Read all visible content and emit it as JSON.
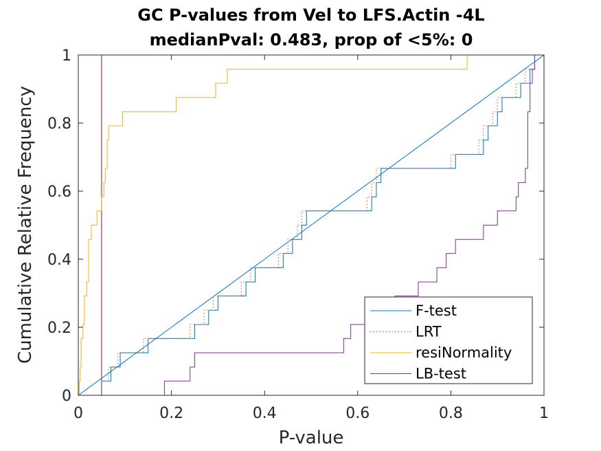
{
  "chart_data": {
    "type": "line",
    "title": [
      "GC P-values from Vel to LFS.Actin -4L",
      "medianPval: 0.483, prop of <5%: 0"
    ],
    "xlabel": "P-value",
    "ylabel": "Cumulative Relative Frequency",
    "xlim": [
      0,
      1
    ],
    "ylim": [
      0,
      1
    ],
    "xticks": [
      "0",
      "0.2",
      "0.4",
      "0.6",
      "0.8",
      "1"
    ],
    "yticks": [
      "0",
      "0.2",
      "0.4",
      "0.6",
      "0.8",
      "1"
    ],
    "grid": false,
    "legend_position": "bottom-right",
    "reference_lines": [
      {
        "kind": "diagonal",
        "from": [
          0,
          0
        ],
        "to": [
          1,
          1
        ],
        "color": "#0072BD"
      },
      {
        "kind": "vertical",
        "x": 0.05,
        "color": "#A2142F"
      }
    ],
    "series": [
      {
        "name": "F-test",
        "color": "#0072BD",
        "style": "solid",
        "steps": [
          [
            0.0,
            0.0
          ],
          [
            0.05,
            0.0
          ],
          [
            0.05,
            0.042
          ],
          [
            0.07,
            0.042
          ],
          [
            0.07,
            0.083
          ],
          [
            0.09,
            0.083
          ],
          [
            0.09,
            0.125
          ],
          [
            0.15,
            0.125
          ],
          [
            0.15,
            0.167
          ],
          [
            0.25,
            0.167
          ],
          [
            0.25,
            0.208
          ],
          [
            0.28,
            0.208
          ],
          [
            0.28,
            0.25
          ],
          [
            0.3,
            0.25
          ],
          [
            0.3,
            0.292
          ],
          [
            0.36,
            0.292
          ],
          [
            0.36,
            0.333
          ],
          [
            0.38,
            0.333
          ],
          [
            0.38,
            0.375
          ],
          [
            0.44,
            0.375
          ],
          [
            0.44,
            0.417
          ],
          [
            0.46,
            0.417
          ],
          [
            0.46,
            0.458
          ],
          [
            0.48,
            0.458
          ],
          [
            0.48,
            0.5
          ],
          [
            0.49,
            0.5
          ],
          [
            0.49,
            0.542
          ],
          [
            0.63,
            0.542
          ],
          [
            0.63,
            0.583
          ],
          [
            0.64,
            0.583
          ],
          [
            0.64,
            0.625
          ],
          [
            0.65,
            0.625
          ],
          [
            0.65,
            0.667
          ],
          [
            0.81,
            0.667
          ],
          [
            0.81,
            0.708
          ],
          [
            0.87,
            0.708
          ],
          [
            0.87,
            0.75
          ],
          [
            0.88,
            0.75
          ],
          [
            0.88,
            0.792
          ],
          [
            0.9,
            0.792
          ],
          [
            0.9,
            0.833
          ],
          [
            0.91,
            0.833
          ],
          [
            0.91,
            0.875
          ],
          [
            0.95,
            0.875
          ],
          [
            0.95,
            0.917
          ],
          [
            0.97,
            0.917
          ],
          [
            0.97,
            0.958
          ],
          [
            0.98,
            0.958
          ],
          [
            0.98,
            1.0
          ],
          [
            1.0,
            1.0
          ]
        ]
      },
      {
        "name": "LRT",
        "color": "#D95319",
        "style": "dotted",
        "steps": [
          [
            0.0,
            0.0
          ],
          [
            0.05,
            0.0
          ],
          [
            0.05,
            0.042
          ],
          [
            0.065,
            0.042
          ],
          [
            0.065,
            0.083
          ],
          [
            0.085,
            0.083
          ],
          [
            0.085,
            0.125
          ],
          [
            0.14,
            0.125
          ],
          [
            0.14,
            0.167
          ],
          [
            0.24,
            0.167
          ],
          [
            0.24,
            0.208
          ],
          [
            0.27,
            0.208
          ],
          [
            0.27,
            0.25
          ],
          [
            0.29,
            0.25
          ],
          [
            0.29,
            0.292
          ],
          [
            0.35,
            0.292
          ],
          [
            0.35,
            0.333
          ],
          [
            0.37,
            0.333
          ],
          [
            0.37,
            0.375
          ],
          [
            0.43,
            0.375
          ],
          [
            0.43,
            0.417
          ],
          [
            0.45,
            0.417
          ],
          [
            0.45,
            0.458
          ],
          [
            0.47,
            0.458
          ],
          [
            0.47,
            0.5
          ],
          [
            0.48,
            0.5
          ],
          [
            0.48,
            0.542
          ],
          [
            0.62,
            0.542
          ],
          [
            0.62,
            0.583
          ],
          [
            0.63,
            0.583
          ],
          [
            0.63,
            0.625
          ],
          [
            0.64,
            0.625
          ],
          [
            0.64,
            0.667
          ],
          [
            0.8,
            0.667
          ],
          [
            0.8,
            0.708
          ],
          [
            0.86,
            0.708
          ],
          [
            0.86,
            0.75
          ],
          [
            0.87,
            0.75
          ],
          [
            0.87,
            0.792
          ],
          [
            0.89,
            0.792
          ],
          [
            0.89,
            0.833
          ],
          [
            0.9,
            0.833
          ],
          [
            0.9,
            0.875
          ],
          [
            0.94,
            0.875
          ],
          [
            0.94,
            0.917
          ],
          [
            0.96,
            0.917
          ],
          [
            0.96,
            0.958
          ],
          [
            0.98,
            0.958
          ],
          [
            0.98,
            1.0
          ],
          [
            1.0,
            1.0
          ]
        ]
      },
      {
        "name": "resiNormality",
        "color": "#EDB120",
        "style": "solid",
        "steps": [
          [
            0.0,
            0.0
          ],
          [
            0.002,
            0.0
          ],
          [
            0.002,
            0.042
          ],
          [
            0.004,
            0.042
          ],
          [
            0.004,
            0.083
          ],
          [
            0.006,
            0.083
          ],
          [
            0.006,
            0.167
          ],
          [
            0.01,
            0.167
          ],
          [
            0.01,
            0.208
          ],
          [
            0.013,
            0.208
          ],
          [
            0.013,
            0.292
          ],
          [
            0.018,
            0.292
          ],
          [
            0.018,
            0.333
          ],
          [
            0.022,
            0.333
          ],
          [
            0.022,
            0.458
          ],
          [
            0.028,
            0.458
          ],
          [
            0.028,
            0.5
          ],
          [
            0.04,
            0.5
          ],
          [
            0.04,
            0.542
          ],
          [
            0.05,
            0.542
          ],
          [
            0.05,
            0.583
          ],
          [
            0.055,
            0.583
          ],
          [
            0.055,
            0.625
          ],
          [
            0.058,
            0.625
          ],
          [
            0.058,
            0.667
          ],
          [
            0.062,
            0.667
          ],
          [
            0.062,
            0.75
          ],
          [
            0.065,
            0.75
          ],
          [
            0.065,
            0.792
          ],
          [
            0.095,
            0.792
          ],
          [
            0.095,
            0.833
          ],
          [
            0.21,
            0.833
          ],
          [
            0.21,
            0.875
          ],
          [
            0.295,
            0.875
          ],
          [
            0.295,
            0.917
          ],
          [
            0.32,
            0.917
          ],
          [
            0.32,
            0.958
          ],
          [
            0.835,
            0.958
          ],
          [
            0.835,
            1.0
          ],
          [
            1.0,
            1.0
          ]
        ]
      },
      {
        "name": "LB-test",
        "color": "#7E2F8E",
        "style": "solid",
        "steps": [
          [
            0.185,
            0.0
          ],
          [
            0.185,
            0.042
          ],
          [
            0.24,
            0.042
          ],
          [
            0.24,
            0.083
          ],
          [
            0.25,
            0.083
          ],
          [
            0.25,
            0.125
          ],
          [
            0.57,
            0.125
          ],
          [
            0.57,
            0.167
          ],
          [
            0.585,
            0.167
          ],
          [
            0.585,
            0.208
          ],
          [
            0.64,
            0.208
          ],
          [
            0.64,
            0.25
          ],
          [
            0.68,
            0.25
          ],
          [
            0.68,
            0.292
          ],
          [
            0.73,
            0.292
          ],
          [
            0.73,
            0.333
          ],
          [
            0.77,
            0.333
          ],
          [
            0.77,
            0.375
          ],
          [
            0.79,
            0.375
          ],
          [
            0.79,
            0.417
          ],
          [
            0.81,
            0.417
          ],
          [
            0.81,
            0.458
          ],
          [
            0.87,
            0.458
          ],
          [
            0.87,
            0.5
          ],
          [
            0.9,
            0.5
          ],
          [
            0.9,
            0.542
          ],
          [
            0.94,
            0.542
          ],
          [
            0.94,
            0.583
          ],
          [
            0.945,
            0.583
          ],
          [
            0.945,
            0.625
          ],
          [
            0.96,
            0.625
          ],
          [
            0.96,
            0.667
          ],
          [
            0.965,
            0.667
          ],
          [
            0.965,
            0.833
          ],
          [
            0.97,
            0.833
          ],
          [
            0.97,
            0.917
          ],
          [
            0.975,
            0.917
          ],
          [
            0.975,
            0.958
          ],
          [
            0.98,
            0.958
          ],
          [
            0.98,
            1.0
          ],
          [
            1.0,
            1.0
          ]
        ]
      }
    ]
  }
}
